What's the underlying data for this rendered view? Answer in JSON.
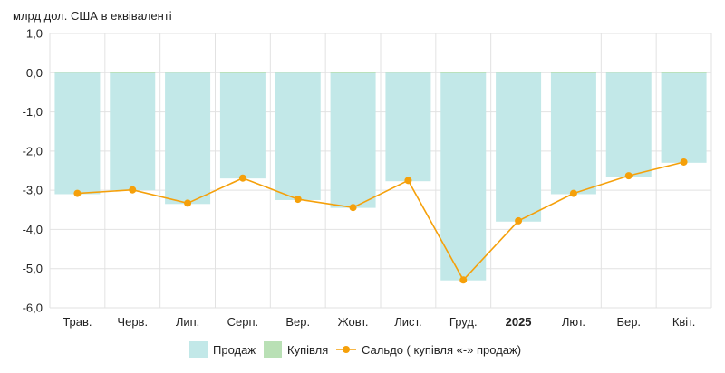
{
  "chart_data": {
    "type": "bar",
    "ylabel": "млрд дол. США в еквіваленті",
    "ylim": [
      -6,
      1
    ],
    "yticks": [
      "1,0",
      "0,0",
      "-1,0",
      "-2,0",
      "-3,0",
      "-4,0",
      "-5,0",
      "-6,0"
    ],
    "ytick_values": [
      1,
      0,
      -1,
      -2,
      -3,
      -4,
      -5,
      -6
    ],
    "categories": [
      "Трав.",
      "Черв.",
      "Лип.",
      "Серп.",
      "Вер.",
      "Жовт.",
      "Лист.",
      "Груд.",
      "2025",
      "Лют.",
      "Бер.",
      "Квіт."
    ],
    "bold_categories": [
      "2025"
    ],
    "grid": true,
    "legend_position": "bottom",
    "series": [
      {
        "name": "Продаж",
        "kind": "bar",
        "color": "#c2e8e8",
        "values": [
          -3.1,
          -3.0,
          -3.35,
          -2.7,
          -3.25,
          -3.45,
          -2.77,
          -5.3,
          -3.8,
          -3.1,
          -2.65,
          -2.3
        ]
      },
      {
        "name": "Купівля",
        "kind": "bar",
        "color": "#b9e0b5",
        "values": [
          0.02,
          0.01,
          0.02,
          0.01,
          0.02,
          0.01,
          0.02,
          0.01,
          0.02,
          0.01,
          0.02,
          0.01
        ]
      },
      {
        "name": "Сальдо ( купівля «-» продаж)",
        "kind": "line",
        "color": "#f5a00a",
        "values": [
          -3.08,
          -2.99,
          -3.33,
          -2.69,
          -3.23,
          -3.44,
          -2.75,
          -5.29,
          -3.78,
          -3.08,
          -2.63,
          -2.28
        ]
      }
    ]
  }
}
